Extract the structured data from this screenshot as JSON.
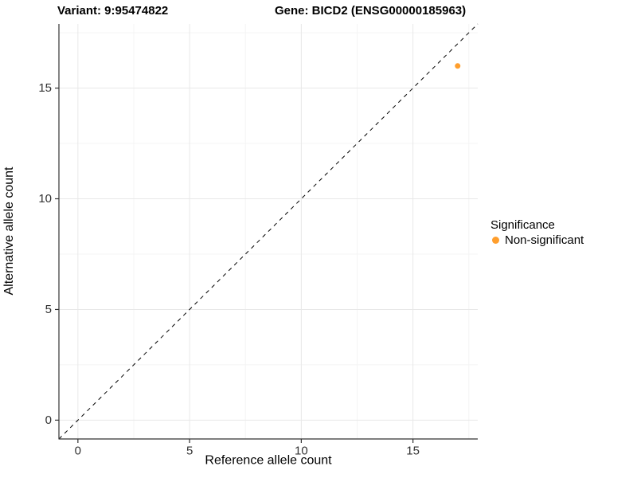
{
  "header": {
    "variant_title": "Variant: 9:95474822",
    "gene_title": "Gene: BICD2 (ENSG00000185963)"
  },
  "chart_data": {
    "type": "scatter",
    "xlabel": "Reference allele count",
    "ylabel": "Alternative allele count",
    "xlim": [
      -0.85,
      17.9
    ],
    "ylim": [
      -0.85,
      17.9
    ],
    "x_ticks": [
      0,
      5,
      10,
      15
    ],
    "y_ticks": [
      0,
      5,
      10,
      15
    ],
    "x_minor_ticks": [
      2.5,
      7.5,
      12.5,
      17.5
    ],
    "y_minor_ticks": [
      2.5,
      7.5,
      12.5,
      17.5
    ],
    "grid": true,
    "identity_line": {
      "style": "dashed",
      "color": "#000000",
      "equation": "y = x"
    },
    "series": [
      {
        "name": "Non-significant",
        "color": "#FF9E2C",
        "points": [
          {
            "x": 17,
            "y": 16
          }
        ]
      }
    ],
    "legend": {
      "title": "Significance",
      "position": "right",
      "entries": [
        {
          "label": "Non-significant",
          "color": "#FF9E2C"
        }
      ]
    },
    "colors": {
      "grid_major": "#e8e8e8",
      "grid_minor": "#f4f4f4",
      "axis": "#333333",
      "tick_label": "#333333"
    }
  }
}
